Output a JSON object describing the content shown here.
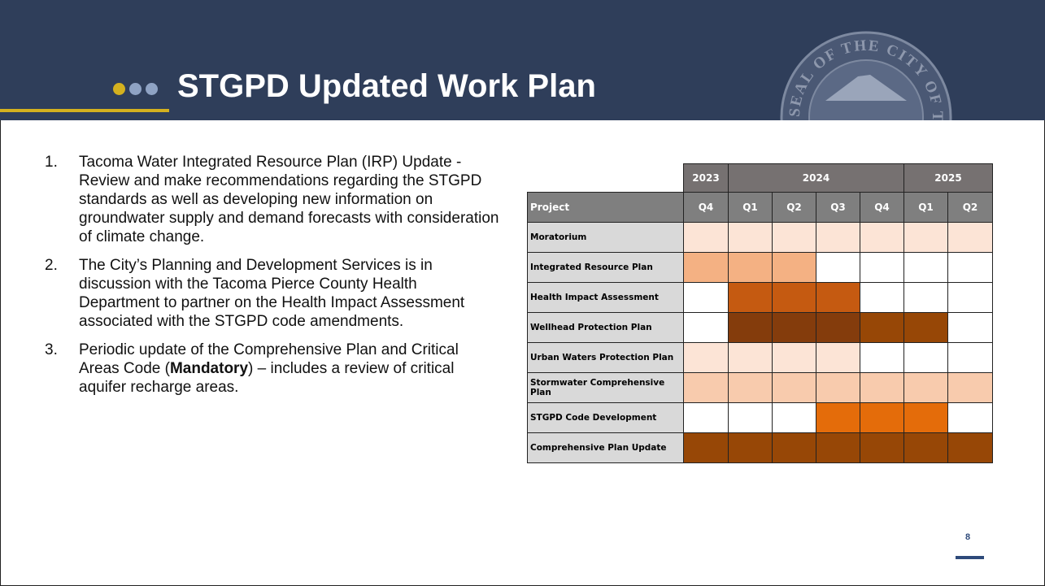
{
  "header": {
    "title": "STGPD Updated Work Plan",
    "seal": "SEAL OF THE CITY OF TACOMA"
  },
  "list": [
    {
      "number": "1.",
      "text": "Tacoma Water Integrated Resource Plan (IRP) Update - Review and make recommendations regarding the STGPD standards as well as developing new information on groundwater supply and demand forecasts with consideration of climate change."
    },
    {
      "number": "2.",
      "text": "The City’s Planning and Development Services is in discussion with the Tacoma Pierce County Health Department to partner on the Health Impact Assessment associated with the STGPD code amendments."
    },
    {
      "number": "3.",
      "text": "Periodic update of the Comprehensive Plan and Critical Areas Code (",
      "bold": "Mandatory",
      "text_after": ") – includes a review of critical aquifer recharge areas."
    }
  ],
  "table": {
    "years": [
      {
        "label": "2023",
        "span": 1
      },
      {
        "label": "2024",
        "span": 4
      },
      {
        "label": "2025",
        "span": 2
      }
    ],
    "header": [
      "Project",
      "Q4",
      "Q1",
      "Q2",
      "Q3",
      "Q4",
      "Q1",
      "Q2"
    ],
    "rows": [
      {
        "project": "Moratorium",
        "colors": [
          "#fce4d6",
          "#fce4d6",
          "#fce4d6",
          "#fce4d6",
          "#fce4d6",
          "#fce4d6",
          "#fce4d6"
        ]
      },
      {
        "project": "Integrated Resource Plan",
        "colors": [
          "#f4b183",
          "#f4b183",
          "#f4b183",
          null,
          null,
          null,
          null
        ]
      },
      {
        "project": "Health Impact Assessment",
        "colors": [
          null,
          "#c55a11",
          "#c55a11",
          "#c55a11",
          null,
          null,
          null
        ]
      },
      {
        "project": "Wellhead Protection Plan",
        "colors": [
          null,
          "#843c0c",
          "#843c0c",
          "#843c0c",
          "#974706",
          "#974706",
          null
        ]
      },
      {
        "project": "Urban Waters Protection Plan",
        "colors": [
          "#fce4d6",
          "#fce4d6",
          "#fce4d6",
          "#fce4d6",
          null,
          null,
          null
        ]
      },
      {
        "project": "Stormwater Comprehensive Plan",
        "colors": [
          "#f8cbad",
          "#f8cbad",
          "#f8cbad",
          "#f8cbad",
          "#f8cbad",
          "#f8cbad",
          "#f8cbad"
        ]
      },
      {
        "project": "STGPD Code Development",
        "colors": [
          null,
          null,
          null,
          "#e46c0a",
          "#e46c0a",
          "#e46c0a",
          null
        ]
      },
      {
        "project": "Comprehensive Plan Update",
        "colors": [
          "#974706",
          "#974706",
          "#974706",
          "#974706",
          "#974706",
          "#974706",
          "#974706"
        ]
      }
    ]
  },
  "page_number": "8"
}
